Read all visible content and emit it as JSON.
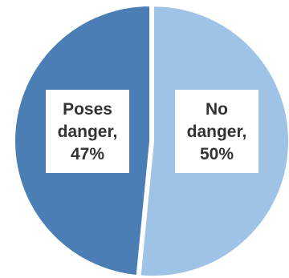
{
  "chart_data": {
    "type": "pie",
    "slices": [
      {
        "label_lines": [
          "No",
          "danger,",
          "50%"
        ],
        "value": 50,
        "color": "#9fc3e7",
        "exploded": true
      },
      {
        "label_lines": [
          "Poses",
          "danger,",
          "47%"
        ],
        "value": 47,
        "color": "#4a7eb4",
        "exploded": false
      }
    ],
    "start_angle_deg": 0,
    "direction": "clockwise",
    "legend": "none",
    "data_labels": "inside"
  }
}
